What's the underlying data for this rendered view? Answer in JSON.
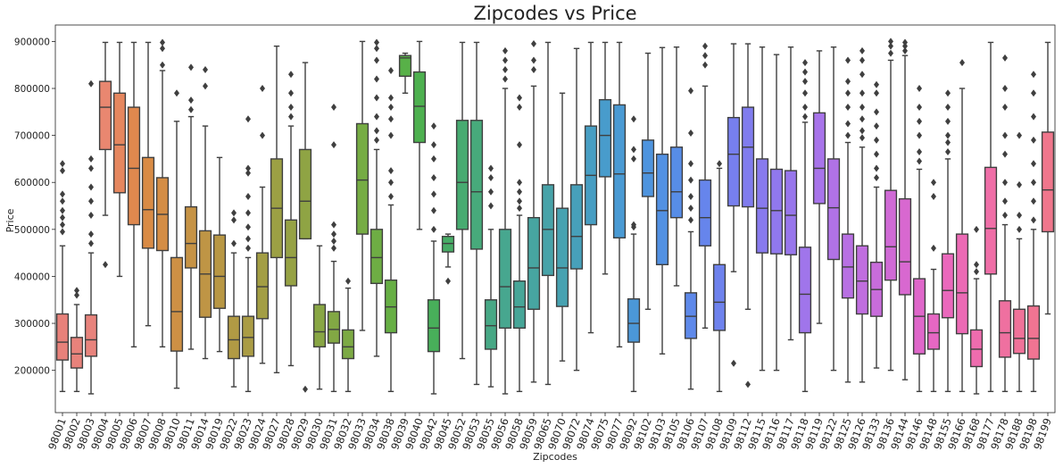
{
  "chart_data": {
    "type": "boxplot",
    "title": "Zipcodes vs Price",
    "xlabel": "Zipcodes",
    "ylabel": "Price",
    "ylim": [
      110000,
      935000
    ],
    "yticks": [
      200000,
      300000,
      400000,
      500000,
      600000,
      700000,
      800000,
      900000
    ],
    "grid": false,
    "legend": "none",
    "box_stats_order": [
      "whisker_low",
      "q1",
      "median",
      "q3",
      "whisker_high"
    ],
    "series": [
      {
        "zipcode": "98001",
        "color": "#e8817a",
        "stats": [
          155000,
          222000,
          260000,
          320000,
          465000
        ],
        "outliers": [
          495000,
          510000,
          525000,
          540000,
          560000,
          575000,
          625000,
          640000
        ]
      },
      {
        "zipcode": "98002",
        "color": "#e8827b",
        "stats": [
          155000,
          205000,
          235000,
          270000,
          340000
        ],
        "outliers": [
          360000,
          370000
        ]
      },
      {
        "zipcode": "98003",
        "color": "#e8837c",
        "stats": [
          150000,
          230000,
          265000,
          318000,
          450000
        ],
        "outliers": [
          470000,
          490000,
          530000,
          560000,
          590000,
          630000,
          650000,
          810000
        ]
      },
      {
        "zipcode": "98004",
        "color": "#e98770",
        "stats": [
          530000,
          670000,
          760000,
          815000,
          898000
        ],
        "outliers": [
          425000
        ]
      },
      {
        "zipcode": "98005",
        "color": "#e5875f",
        "stats": [
          400000,
          578000,
          680000,
          790000,
          898000
        ],
        "outliers": []
      },
      {
        "zipcode": "98006",
        "color": "#e0884e",
        "stats": [
          250000,
          510000,
          630000,
          760000,
          898000
        ],
        "outliers": []
      },
      {
        "zipcode": "98007",
        "color": "#d98b45",
        "stats": [
          295000,
          460000,
          542000,
          653000,
          898000
        ],
        "outliers": []
      },
      {
        "zipcode": "98008",
        "color": "#d48d45",
        "stats": [
          250000,
          455000,
          532000,
          610000,
          838000
        ],
        "outliers": [
          850000,
          885000,
          898000
        ]
      },
      {
        "zipcode": "98010",
        "color": "#cd9045",
        "stats": [
          162000,
          241000,
          325000,
          440000,
          730000
        ],
        "outliers": [
          790000
        ]
      },
      {
        "zipcode": "98011",
        "color": "#c69345",
        "stats": [
          245000,
          418000,
          470000,
          548000,
          740000
        ],
        "outliers": [
          755000,
          775000,
          845000
        ]
      },
      {
        "zipcode": "98014",
        "color": "#bf9545",
        "stats": [
          225000,
          313000,
          405000,
          497000,
          720000
        ],
        "outliers": [
          805000,
          840000
        ]
      },
      {
        "zipcode": "98019",
        "color": "#b89744",
        "stats": [
          240000,
          332000,
          400000,
          488000,
          653000
        ],
        "outliers": []
      },
      {
        "zipcode": "98022",
        "color": "#b19a44",
        "stats": [
          165000,
          225000,
          265000,
          315000,
          450000
        ],
        "outliers": [
          470000,
          520000,
          535000
        ]
      },
      {
        "zipcode": "98023",
        "color": "#aa9c44",
        "stats": [
          155000,
          230000,
          270000,
          315000,
          440000
        ],
        "outliers": [
          460000,
          480000,
          505000,
          535000,
          570000,
          620000,
          630000,
          735000
        ]
      },
      {
        "zipcode": "98024",
        "color": "#a39e44",
        "stats": [
          215000,
          310000,
          378000,
          450000,
          590000
        ],
        "outliers": [
          700000,
          800000
        ]
      },
      {
        "zipcode": "98027",
        "color": "#9ca044",
        "stats": [
          195000,
          440000,
          545000,
          650000,
          890000
        ],
        "outliers": []
      },
      {
        "zipcode": "98028",
        "color": "#96a244",
        "stats": [
          210000,
          380000,
          440000,
          520000,
          720000
        ],
        "outliers": [
          740000,
          760000,
          790000,
          830000
        ]
      },
      {
        "zipcode": "98029",
        "color": "#8fa444",
        "stats": [
          480000,
          480000,
          560000,
          670000,
          855000
        ],
        "outliers": [
          160000
        ]
      },
      {
        "zipcode": "98030",
        "color": "#88a644",
        "stats": [
          160000,
          250000,
          282000,
          340000,
          465000
        ],
        "outliers": []
      },
      {
        "zipcode": "98031",
        "color": "#82a844",
        "stats": [
          155000,
          258000,
          287000,
          325000,
          432000
        ],
        "outliers": [
          460000,
          475000,
          490000,
          510000,
          680000,
          760000
        ]
      },
      {
        "zipcode": "98032",
        "color": "#7caa44",
        "stats": [
          155000,
          225000,
          250000,
          286000,
          375000
        ],
        "outliers": [
          390000
        ]
      },
      {
        "zipcode": "98033",
        "color": "#76ac44",
        "stats": [
          285000,
          490000,
          605000,
          725000,
          900000
        ],
        "outliers": []
      },
      {
        "zipcode": "98034",
        "color": "#6ead44",
        "stats": [
          230000,
          385000,
          440000,
          500000,
          670000
        ],
        "outliers": [
          690000,
          710000,
          740000,
          780000,
          820000,
          860000,
          885000,
          898000
        ]
      },
      {
        "zipcode": "98038",
        "color": "#66af44",
        "stats": [
          155000,
          280000,
          335000,
          392000,
          552000
        ],
        "outliers": [
          570000,
          600000,
          625000,
          700000,
          735000,
          760000,
          780000,
          838000
        ]
      },
      {
        "zipcode": "98039",
        "color": "#58b148",
        "stats": [
          790000,
          826000,
          865000,
          870000,
          875000
        ],
        "outliers": []
      },
      {
        "zipcode": "98040",
        "color": "#4db04f",
        "stats": [
          500000,
          685000,
          762000,
          835000,
          900000
        ],
        "outliers": []
      },
      {
        "zipcode": "98042",
        "color": "#48af5a",
        "stats": [
          150000,
          240000,
          290000,
          350000,
          475000
        ],
        "outliers": [
          500000,
          540000,
          575000,
          610000,
          650000,
          680000,
          720000
        ]
      },
      {
        "zipcode": "98045",
        "color": "#47ad66",
        "stats": [
          420000,
          452000,
          470000,
          485000,
          490000
        ],
        "outliers": [
          390000
        ]
      },
      {
        "zipcode": "98052",
        "color": "#47ab71",
        "stats": [
          225000,
          500000,
          600000,
          732000,
          898000
        ],
        "outliers": []
      },
      {
        "zipcode": "98053",
        "color": "#47aa7b",
        "stats": [
          170000,
          458000,
          580000,
          732000,
          898000
        ],
        "outliers": []
      },
      {
        "zipcode": "98055",
        "color": "#47a885",
        "stats": [
          165000,
          245000,
          295000,
          350000,
          500000
        ],
        "outliers": [
          550000,
          580000,
          610000,
          630000
        ]
      },
      {
        "zipcode": "98056",
        "color": "#47a78f",
        "stats": [
          150000,
          290000,
          378000,
          500000,
          800000
        ],
        "outliers": [
          820000,
          840000,
          860000,
          880000
        ]
      },
      {
        "zipcode": "98058",
        "color": "#47a698",
        "stats": [
          155000,
          290000,
          335000,
          390000,
          530000
        ],
        "outliers": [
          545000,
          560000,
          580000,
          600000,
          680000,
          760000,
          780000
        ]
      },
      {
        "zipcode": "98059",
        "color": "#47a5a1",
        "stats": [
          175000,
          330000,
          418000,
          525000,
          805000
        ],
        "outliers": [
          840000,
          860000,
          895000
        ]
      },
      {
        "zipcode": "98065",
        "color": "#47a3a9",
        "stats": [
          170000,
          402000,
          500000,
          595000,
          898000
        ],
        "outliers": []
      },
      {
        "zipcode": "98070",
        "color": "#47a2b1",
        "stats": [
          220000,
          336000,
          418000,
          545000,
          790000
        ],
        "outliers": []
      },
      {
        "zipcode": "98072",
        "color": "#47a0ba",
        "stats": [
          200000,
          416000,
          485000,
          595000,
          885000
        ],
        "outliers": []
      },
      {
        "zipcode": "98074",
        "color": "#479ec3",
        "stats": [
          280000,
          510000,
          615000,
          720000,
          898000
        ],
        "outliers": []
      },
      {
        "zipcode": "98075",
        "color": "#489ccc",
        "stats": [
          405000,
          612000,
          700000,
          776000,
          898000
        ],
        "outliers": []
      },
      {
        "zipcode": "98077",
        "color": "#4a9ad3",
        "stats": [
          250000,
          482000,
          618000,
          765000,
          898000
        ],
        "outliers": []
      },
      {
        "zipcode": "98092",
        "color": "#4b97d8",
        "stats": [
          155000,
          260000,
          300000,
          352000,
          490000
        ],
        "outliers": [
          505000,
          510000,
          650000,
          670000,
          735000
        ]
      },
      {
        "zipcode": "98102",
        "color": "#4e94de",
        "stats": [
          330000,
          570000,
          620000,
          690000,
          875000
        ],
        "outliers": []
      },
      {
        "zipcode": "98103",
        "color": "#5291e3",
        "stats": [
          235000,
          425000,
          540000,
          660000,
          887000
        ],
        "outliers": []
      },
      {
        "zipcode": "98105",
        "color": "#578de7",
        "stats": [
          380000,
          525000,
          580000,
          675000,
          888000
        ],
        "outliers": []
      },
      {
        "zipcode": "98106",
        "color": "#5e89ea",
        "stats": [
          160000,
          268000,
          315000,
          365000,
          495000
        ],
        "outliers": [
          520000,
          545000,
          570000,
          605000,
          640000,
          705000,
          795000
        ]
      },
      {
        "zipcode": "98107",
        "color": "#6685ec",
        "stats": [
          290000,
          465000,
          525000,
          605000,
          805000
        ],
        "outliers": [
          850000,
          870000,
          890000
        ]
      },
      {
        "zipcode": "98108",
        "color": "#6e82ed",
        "stats": [
          155000,
          285000,
          345000,
          425000,
          630000
        ],
        "outliers": [
          640000
        ]
      },
      {
        "zipcode": "98109",
        "color": "#777fee",
        "stats": [
          410000,
          550000,
          660000,
          738000,
          895000
        ],
        "outliers": [
          215000
        ]
      },
      {
        "zipcode": "98112",
        "color": "#807cee",
        "stats": [
          330000,
          548000,
          675000,
          760000,
          895000
        ],
        "outliers": [
          170000
        ]
      },
      {
        "zipcode": "98115",
        "color": "#887aee",
        "stats": [
          200000,
          450000,
          545000,
          650000,
          888000
        ],
        "outliers": []
      },
      {
        "zipcode": "98116",
        "color": "#9078ed",
        "stats": [
          200000,
          448000,
          540000,
          628000,
          872000
        ],
        "outliers": []
      },
      {
        "zipcode": "98117",
        "color": "#9876ec",
        "stats": [
          265000,
          446000,
          530000,
          625000,
          888000
        ],
        "outliers": []
      },
      {
        "zipcode": "98118",
        "color": "#a075eb",
        "stats": [
          155000,
          280000,
          362000,
          462000,
          728000
        ],
        "outliers": [
          740000,
          760000,
          790000,
          815000,
          835000,
          855000
        ]
      },
      {
        "zipcode": "98119",
        "color": "#a874ea",
        "stats": [
          300000,
          555000,
          630000,
          748000,
          880000
        ],
        "outliers": []
      },
      {
        "zipcode": "98122",
        "color": "#b072e6",
        "stats": [
          200000,
          436000,
          546000,
          650000,
          888000
        ],
        "outliers": []
      },
      {
        "zipcode": "98125",
        "color": "#b870e3",
        "stats": [
          175000,
          354000,
          420000,
          490000,
          685000
        ],
        "outliers": [
          700000,
          725000,
          760000,
          790000,
          815000,
          860000
        ]
      },
      {
        "zipcode": "98126",
        "color": "#c06edf",
        "stats": [
          175000,
          320000,
          390000,
          465000,
          675000
        ],
        "outliers": [
          695000,
          710000,
          735000,
          760000,
          790000,
          830000,
          860000,
          880000
        ]
      },
      {
        "zipcode": "98133",
        "color": "#c86cdb",
        "stats": [
          205000,
          315000,
          372000,
          430000,
          590000
        ],
        "outliers": [
          610000,
          630000,
          660000,
          690000,
          720000,
          750000,
          790000,
          808000
        ]
      },
      {
        "zipcode": "98136",
        "color": "#d06ad6",
        "stats": [
          200000,
          392000,
          463000,
          583000,
          860000
        ],
        "outliers": [
          875000,
          890000,
          900000
        ]
      },
      {
        "zipcode": "98144",
        "color": "#d868d0",
        "stats": [
          180000,
          361000,
          431000,
          565000,
          870000
        ],
        "outliers": [
          880000,
          890000,
          898000
        ]
      },
      {
        "zipcode": "98146",
        "color": "#df67ca",
        "stats": [
          155000,
          235000,
          315000,
          395000,
          628000
        ],
        "outliers": [
          645000,
          665000,
          700000,
          730000,
          760000,
          800000
        ]
      },
      {
        "zipcode": "98148",
        "color": "#e667c3",
        "stats": [
          155000,
          245000,
          280000,
          320000,
          415000
        ],
        "outliers": [
          460000,
          570000,
          600000
        ]
      },
      {
        "zipcode": "98155",
        "color": "#ea68bc",
        "stats": [
          155000,
          312000,
          370000,
          448000,
          650000
        ],
        "outliers": [
          665000,
          685000,
          700000,
          730000,
          760000,
          790000
        ]
      },
      {
        "zipcode": "98166",
        "color": "#ec6ab5",
        "stats": [
          155000,
          278000,
          365000,
          490000,
          800000
        ],
        "outliers": [
          855000
        ]
      },
      {
        "zipcode": "98168",
        "color": "#ee6cae",
        "stats": [
          150000,
          208000,
          245000,
          286000,
          395000
        ],
        "outliers": [
          410000,
          425000,
          500000
        ]
      },
      {
        "zipcode": "98177",
        "color": "#ef6ea7",
        "stats": [
          155000,
          405000,
          502000,
          632000,
          898000
        ],
        "outliers": []
      },
      {
        "zipcode": "98178",
        "color": "#ef70a0",
        "stats": [
          155000,
          228000,
          280000,
          348000,
          510000
        ],
        "outliers": [
          530000,
          560000,
          600000,
          660000,
          700000,
          760000,
          800000,
          865000
        ]
      },
      {
        "zipcode": "98188",
        "color": "#f07299",
        "stats": [
          155000,
          236000,
          268000,
          330000,
          480000
        ],
        "outliers": [
          500000,
          530000,
          595000,
          700000
        ]
      },
      {
        "zipcode": "98198",
        "color": "#f07492",
        "stats": [
          155000,
          224000,
          268000,
          337000,
          500000
        ],
        "outliers": [
          520000,
          560000,
          600000,
          640000,
          690000,
          740000,
          790000,
          830000
        ]
      },
      {
        "zipcode": "98199",
        "color": "#f0768c",
        "stats": [
          320000,
          495000,
          584000,
          707000,
          898000
        ],
        "outliers": []
      }
    ]
  }
}
